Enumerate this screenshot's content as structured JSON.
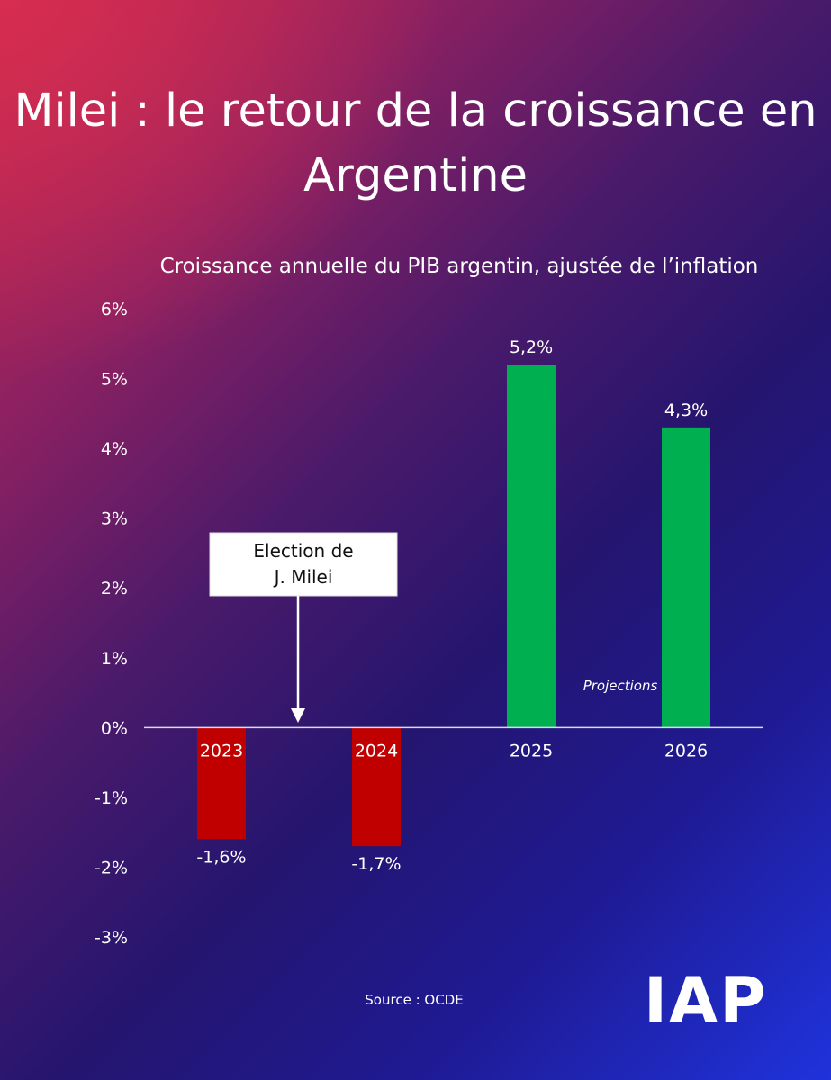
{
  "title": "Milei : le retour de la croissance en Argentine",
  "logo": "IAP",
  "source": "Source : OCDE",
  "colors": {
    "negative": "#c00000",
    "positive": "#00b050",
    "axis": "#d9d9f0"
  },
  "chart_data": {
    "type": "bar",
    "title": "Croissance annuelle du PIB argentin, ajustée de l’inflation",
    "categories": [
      "2023",
      "2024",
      "2025",
      "2026"
    ],
    "values": [
      -1.6,
      -1.7,
      5.2,
      4.3
    ],
    "value_labels": [
      "-1,6%",
      "-1,7%",
      "5,2%",
      "4,3%"
    ],
    "ylim": [
      -3,
      6
    ],
    "yticks": [
      6,
      5,
      4,
      3,
      2,
      1,
      0,
      -1,
      -2,
      -3
    ],
    "ytick_labels": [
      "6%",
      "5%",
      "4%",
      "3%",
      "2%",
      "1%",
      "0%",
      "-1%",
      "-2%",
      "-3%"
    ],
    "annotations": {
      "election_lines": [
        "Election de",
        "J. Milei"
      ],
      "projections": "Projections"
    }
  }
}
